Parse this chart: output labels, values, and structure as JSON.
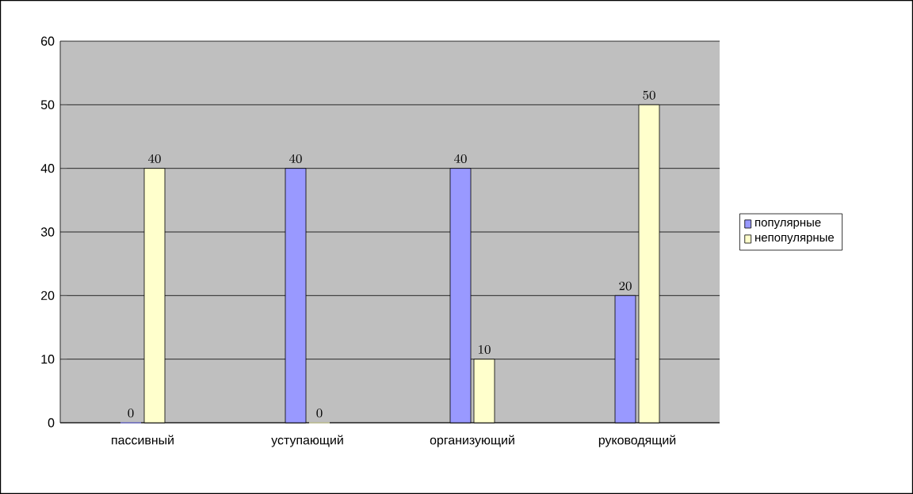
{
  "chart_data": {
    "type": "bar",
    "categories": [
      "пассивный",
      "уступающий",
      "организующий",
      "руководящий"
    ],
    "series": [
      {
        "name": "популярные",
        "color": "#9999ff",
        "values": [
          0,
          40,
          40,
          20
        ]
      },
      {
        "name": "непопулярные",
        "color": "#ffffcc",
        "values": [
          40,
          0,
          10,
          50
        ]
      }
    ],
    "ylim": [
      0,
      60
    ],
    "yticks": [
      0,
      10,
      20,
      30,
      40,
      50,
      60
    ],
    "grid": "y",
    "legend": "right",
    "data_labels": true
  }
}
